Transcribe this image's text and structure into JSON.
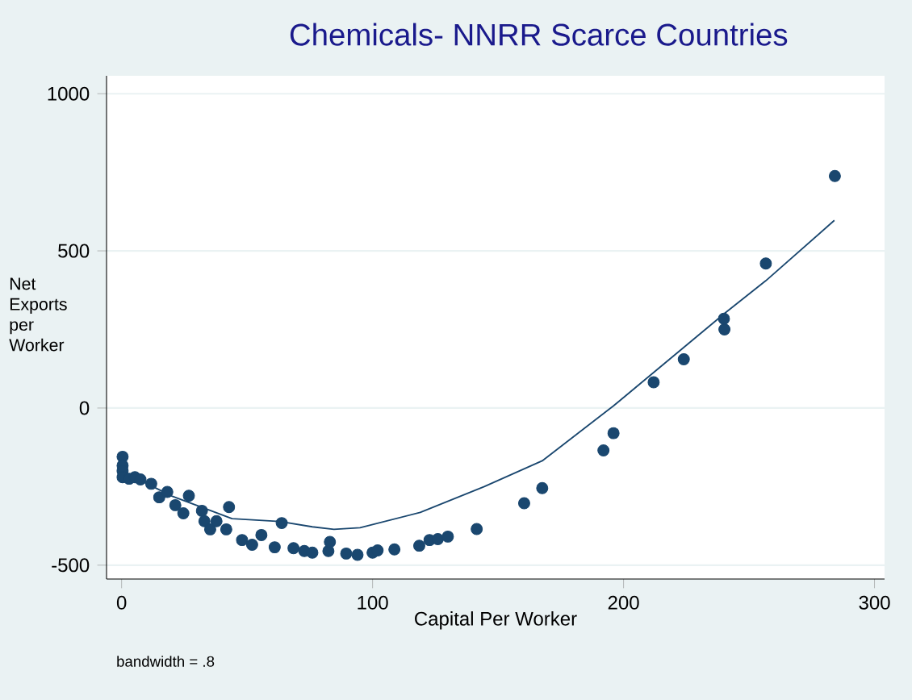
{
  "chart_data": {
    "type": "scatter",
    "title": "Chemicals- NNRR Scarce Countries",
    "xlabel": "Capital Per Worker",
    "ylabel": "Net Exports per Worker",
    "annotations": [
      "bandwidth = .8"
    ],
    "xlim": [
      -6,
      304
    ],
    "ylim": [
      -544,
      1057
    ],
    "xticks": [
      0,
      100,
      200,
      300
    ],
    "yticks": [
      -500,
      0,
      500,
      1000
    ],
    "grid": "y",
    "series": [
      {
        "color": "#1a476f",
        "marker": "circle",
        "x": [
          0.4,
          0.4,
          0.4,
          0.4,
          3,
          5.3,
          7.5,
          11.8,
          15,
          18.2,
          21.4,
          24.6,
          26.8,
          32,
          33,
          35.3,
          37.8,
          41.7,
          42.8,
          48,
          52,
          55.7,
          61,
          63.8,
          68.5,
          72.8,
          76,
          82.4,
          83,
          89.5,
          94,
          100,
          102,
          108.7,
          118.6,
          122.7,
          126,
          130,
          141.5,
          160.4,
          167.6,
          192,
          196,
          212,
          224,
          240.2,
          240,
          256.7,
          284.2
        ],
        "values": [
          -155,
          -183,
          -200,
          -220,
          -225,
          -220,
          -227,
          -241,
          -284,
          -267,
          -309,
          -335,
          -279,
          -327,
          -360,
          -386,
          -360,
          -386,
          -315,
          -420,
          -435,
          -404,
          -443,
          -366,
          -446,
          -455,
          -460,
          -455,
          -426,
          -463,
          -467,
          -460,
          -453,
          -450,
          -438,
          -420,
          -417,
          -409,
          -385,
          -303,
          -255,
          -135,
          -80,
          82,
          155,
          250,
          284,
          460,
          738
        ]
      },
      {
        "type": "line",
        "color": "#1a476f",
        "x": [
          0,
          20,
          44,
          63,
          76,
          84.6,
          95,
          119,
          144.5,
          167.6,
          196,
          241,
          256.7,
          284
        ],
        "values": [
          -200,
          -280,
          -352,
          -361,
          -378,
          -386,
          -381,
          -332,
          -250,
          -168,
          7,
          306,
          405,
          597
        ]
      }
    ]
  }
}
